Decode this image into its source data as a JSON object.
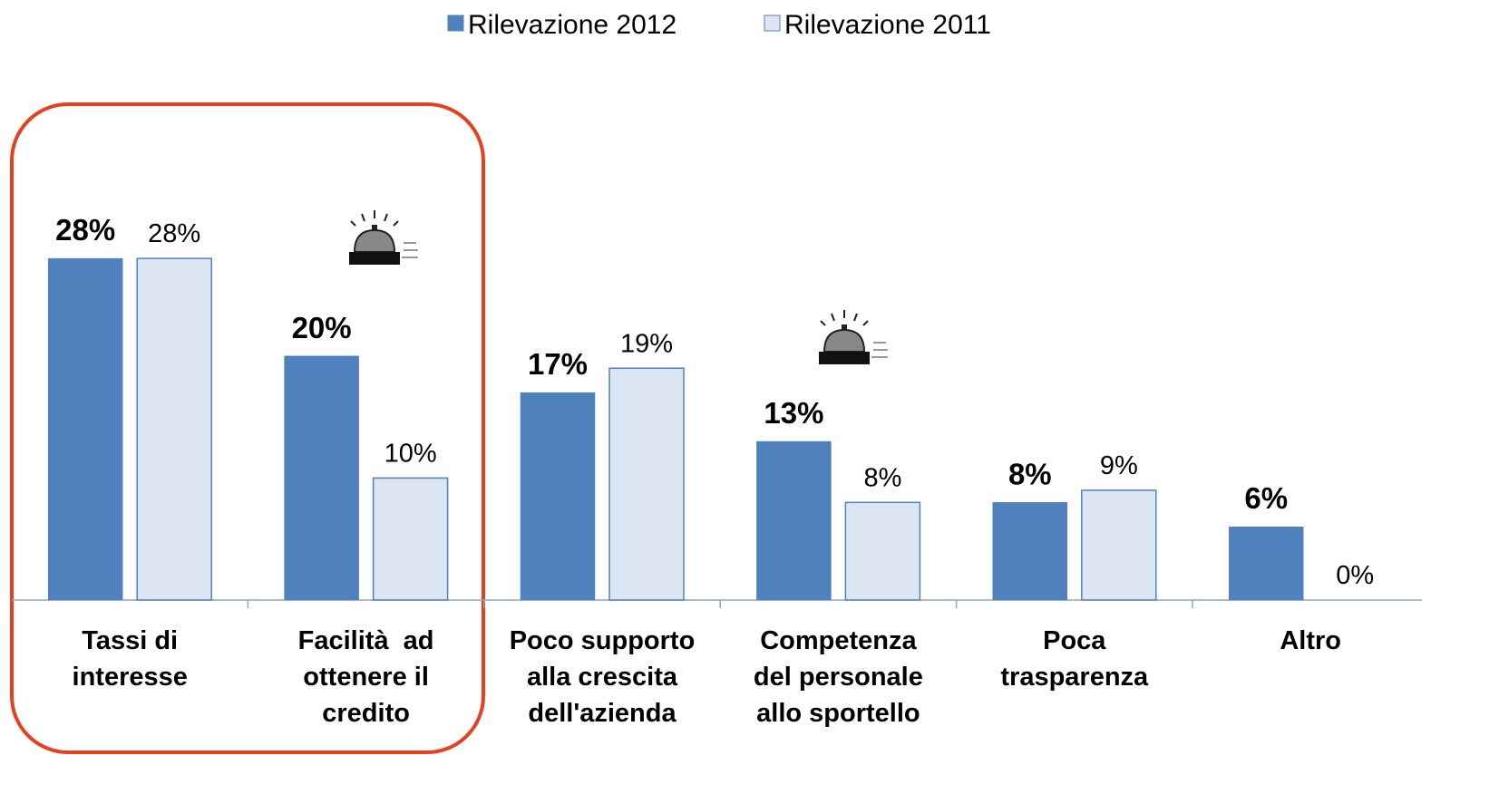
{
  "chart_data": {
    "type": "bar",
    "categories": [
      [
        "Tassi di",
        "interesse"
      ],
      [
        "Facilità  ad",
        "ottenere il",
        "credito"
      ],
      [
        "Poco supporto",
        "alla crescita",
        "dell'azienda"
      ],
      [
        "Competenza",
        "del personale",
        "allo sportello"
      ],
      [
        "Poca",
        "trasparenza"
      ],
      [
        "Altro"
      ]
    ],
    "series": [
      {
        "name": "Rilevazione 2012",
        "color": "#4f81bd",
        "values": [
          28,
          20,
          17,
          13,
          8,
          6
        ],
        "value_labels": [
          "28%",
          "20%",
          "17%",
          "13%",
          "8%",
          "6%"
        ]
      },
      {
        "name": "Rilevazione 2011",
        "color": "#dce6f2",
        "values": [
          28,
          10,
          19,
          8,
          9,
          0
        ],
        "value_labels": [
          "28%",
          "10%",
          "19%",
          "8%",
          "9%",
          "0%"
        ]
      }
    ],
    "legend": "top"
  }
}
